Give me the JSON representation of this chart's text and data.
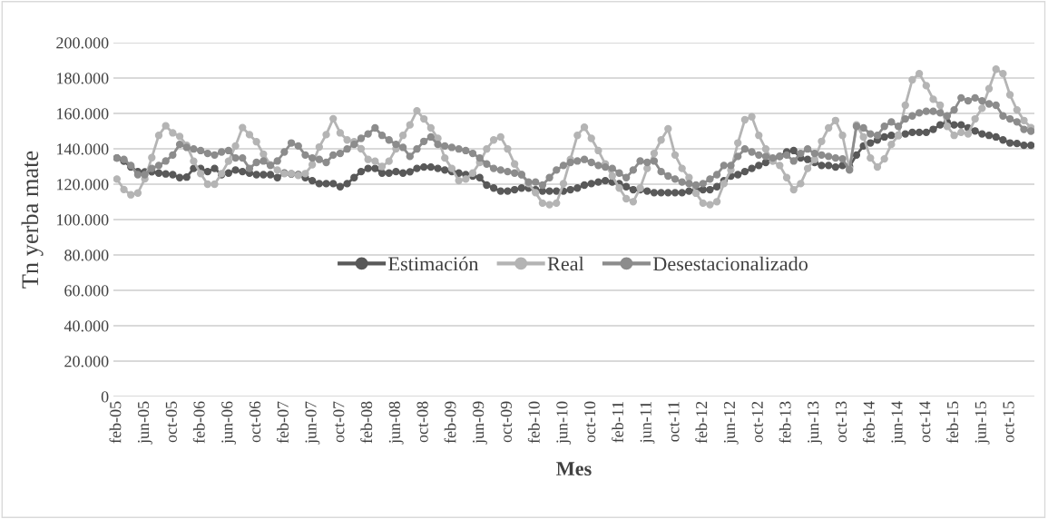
{
  "chart_data": {
    "type": "line",
    "xlabel": "Mes",
    "ylabel": "Tn yerba mate",
    "categories": [
      "feb-05",
      null,
      null,
      null,
      "jun-05",
      null,
      null,
      null,
      "oct-05",
      null,
      null,
      null,
      "feb-06",
      null,
      null,
      null,
      "jun-06",
      null,
      null,
      null,
      "oct-06",
      null,
      null,
      null,
      "feb-07",
      null,
      null,
      null,
      "jun-07",
      null,
      null,
      null,
      "oct-07",
      null,
      null,
      null,
      "feb-08",
      null,
      null,
      null,
      "jun-08",
      null,
      null,
      null,
      "oct-08",
      null,
      null,
      null,
      "feb-09",
      null,
      null,
      null,
      "jun-09",
      null,
      null,
      null,
      "oct-09",
      null,
      null,
      null,
      "feb-10",
      null,
      null,
      null,
      "jun-10",
      null,
      null,
      null,
      "oct-10",
      null,
      null,
      null,
      "feb-11",
      null,
      null,
      null,
      "jun-11",
      null,
      null,
      null,
      "oct-11",
      null,
      null,
      null,
      "feb-12",
      null,
      null,
      null,
      "jun-12",
      null,
      null,
      null,
      "oct-12",
      null,
      null,
      null,
      "feb-13",
      null,
      null,
      null,
      "jun-13",
      null,
      null,
      null,
      "oct-13",
      null,
      null,
      null,
      "feb-14",
      null,
      null,
      null,
      "jun-14",
      null,
      null,
      null,
      "oct-14",
      null,
      null,
      null,
      "feb-15",
      null,
      null,
      null,
      "jun-15",
      null,
      null,
      null,
      "oct-15",
      null,
      null,
      null
    ],
    "series": [
      {
        "name": "Estimación",
        "color": "#595959",
        "values": [
          134800,
          133000,
          129700,
          127100,
          127000,
          127000,
          126300,
          125800,
          125400,
          123700,
          124000,
          128900,
          128900,
          127100,
          128900,
          125400,
          126300,
          128000,
          127100,
          126300,
          125400,
          125400,
          125400,
          123700,
          126300,
          125800,
          125400,
          123700,
          122000,
          120300,
          120300,
          120300,
          118600,
          120300,
          123700,
          127100,
          128900,
          128900,
          126300,
          126300,
          127100,
          126300,
          127000,
          128900,
          129700,
          129700,
          128900,
          128000,
          127100,
          126300,
          125400,
          124600,
          123700,
          119500,
          117800,
          116100,
          116100,
          116900,
          117800,
          117800,
          116900,
          116100,
          116100,
          116100,
          116100,
          116900,
          117800,
          119500,
          120300,
          121200,
          122000,
          121200,
          120300,
          118600,
          116900,
          116900,
          116100,
          115200,
          115200,
          115200,
          115200,
          115200,
          116100,
          116900,
          116900,
          116900,
          118600,
          122000,
          124600,
          125400,
          127100,
          128900,
          130600,
          132300,
          134000,
          135700,
          138200,
          139000,
          134800,
          134000,
          132300,
          130600,
          130600,
          129700,
          130600,
          130000,
          136500,
          141600,
          143300,
          145000,
          146700,
          147600,
          147600,
          148400,
          149300,
          149300,
          149300,
          151000,
          153500,
          155200,
          153500,
          153500,
          151800,
          150100,
          148400,
          147600,
          146700,
          145000,
          143300,
          143000,
          142000,
          142000
        ]
      },
      {
        "name": "Real",
        "color": "#b4b4b4",
        "values": [
          122900,
          117000,
          114000,
          115000,
          123000,
          135000,
          147600,
          153000,
          149000,
          147000,
          142000,
          133000,
          126000,
          120000,
          120000,
          126000,
          133000,
          141600,
          152000,
          148000,
          144000,
          137000,
          131000,
          128000,
          126000,
          126000,
          125000,
          126000,
          131000,
          141000,
          148000,
          157000,
          149000,
          145000,
          144000,
          140000,
          134000,
          133000,
          130000,
          133000,
          140000,
          147600,
          153500,
          161500,
          156900,
          151800,
          145900,
          134800,
          128900,
          122000,
          122900,
          126300,
          132300,
          139900,
          145000,
          146700,
          139900,
          131400,
          125400,
          120300,
          115200,
          109300,
          108400,
          109300,
          120300,
          134000,
          147600,
          152200,
          145900,
          139000,
          131400,
          124600,
          117800,
          111800,
          110100,
          117800,
          128900,
          137400,
          145000,
          151300,
          136500,
          128900,
          123700,
          114900,
          109300,
          108400,
          110100,
          120300,
          128000,
          143300,
          156400,
          158100,
          147600,
          139900,
          133000,
          130600,
          123700,
          116900,
          120300,
          128900,
          134000,
          144200,
          151800,
          156000,
          147600,
          128900,
          153500,
          146700,
          134800,
          129700,
          134300,
          142500,
          147600,
          164600,
          179000,
          182500,
          175700,
          168000,
          164600,
          152700,
          147600,
          149300,
          148400,
          156900,
          162900,
          174000,
          185000,
          182500,
          170500,
          162000,
          156000,
          152000
        ]
      },
      {
        "name": "Desestacionalizado",
        "color": "#8c8c8c",
        "values": [
          134800,
          134000,
          130600,
          125400,
          125400,
          128900,
          130600,
          133100,
          136500,
          142500,
          140800,
          139900,
          139000,
          137400,
          136500,
          138200,
          139000,
          134800,
          134800,
          128900,
          132300,
          133100,
          130600,
          133100,
          138200,
          143300,
          141600,
          136500,
          134800,
          134000,
          132300,
          136500,
          137400,
          139900,
          142500,
          145900,
          148400,
          151800,
          147600,
          145000,
          142500,
          140800,
          135700,
          139900,
          144200,
          146700,
          142500,
          141600,
          140800,
          139900,
          139000,
          137400,
          134800,
          131400,
          128900,
          128000,
          127100,
          126300,
          125400,
          121200,
          121200,
          119500,
          123700,
          128000,
          130600,
          132300,
          133100,
          134000,
          132300,
          130600,
          129700,
          128900,
          126300,
          123700,
          128000,
          133100,
          132300,
          133100,
          127100,
          124600,
          122900,
          121200,
          120300,
          119500,
          120300,
          122900,
          125400,
          130600,
          130600,
          135700,
          139900,
          138200,
          136500,
          135700,
          134800,
          135700,
          136500,
          133100,
          137400,
          139900,
          137400,
          136500,
          135700,
          134800,
          134300,
          128000,
          152700,
          151800,
          148400,
          147600,
          152700,
          155200,
          152700,
          156900,
          158600,
          160300,
          161200,
          161200,
          160300,
          158600,
          162000,
          168800,
          167100,
          168800,
          167100,
          165400,
          164600,
          158600,
          156900,
          155200,
          151000,
          150000
        ]
      }
    ],
    "ylim": [
      0,
      200000
    ],
    "yticks": [
      {
        "value": 0,
        "label": "0"
      },
      {
        "value": 20000,
        "label": "20.000"
      },
      {
        "value": 40000,
        "label": "40.000"
      },
      {
        "value": 60000,
        "label": "60.000"
      },
      {
        "value": 80000,
        "label": "80.000"
      },
      {
        "value": 100000,
        "label": "100.000"
      },
      {
        "value": 120000,
        "label": "120.000"
      },
      {
        "value": 140000,
        "label": "140.000"
      },
      {
        "value": 160000,
        "label": "160.000"
      },
      {
        "value": 180000,
        "label": "180.000"
      },
      {
        "value": 200000,
        "label": "200.000"
      }
    ],
    "grid": "y",
    "legend": "center",
    "marker": "circle",
    "line_style": "solid"
  }
}
